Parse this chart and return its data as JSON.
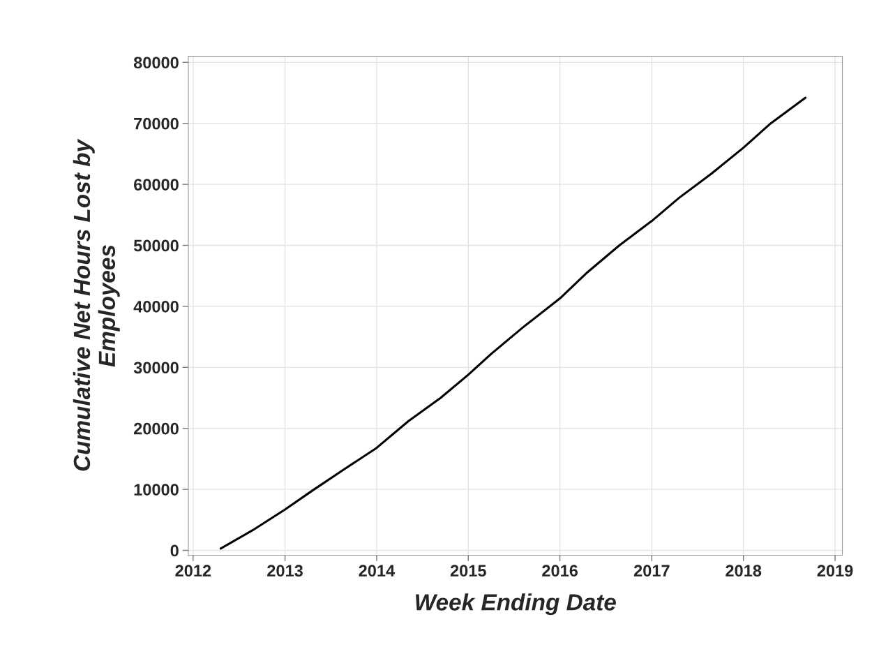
{
  "chart_data": {
    "type": "line",
    "xlabel": "Week Ending Date",
    "ylabel": "Cumulative Net Hours Lost by\nEmployees",
    "x": [
      "2012-04-20",
      "2012-08-25",
      "2013-01-01",
      "2013-04-20",
      "2013-08-25",
      "2014-01-01",
      "2014-05-08",
      "2014-09-13",
      "2015-01-01",
      "2015-04-02",
      "2015-08-08",
      "2016-01-01",
      "2016-04-20",
      "2016-08-25",
      "2017-01-01",
      "2017-04-20",
      "2017-08-25",
      "2018-01-01",
      "2018-04-20",
      "2018-09-05"
    ],
    "series": [
      {
        "color": "#000000",
        "values": [
          300,
          3300,
          6700,
          9800,
          13300,
          16800,
          21200,
          25000,
          28800,
          32200,
          36600,
          41300,
          45600,
          50000,
          54000,
          57800,
          61700,
          66000,
          70000,
          74200
        ]
      }
    ],
    "xlim": [
      "2011-12-13",
      "2019-01-30"
    ],
    "xticks": [
      "2012",
      "2013",
      "2014",
      "2015",
      "2016",
      "2017",
      "2018",
      "2019"
    ],
    "ylim": [
      -800,
      81000
    ],
    "yticks": [
      0,
      10000,
      20000,
      30000,
      40000,
      50000,
      60000,
      70000,
      80000
    ],
    "grid": true,
    "marker": "none",
    "line_style": "solid"
  }
}
